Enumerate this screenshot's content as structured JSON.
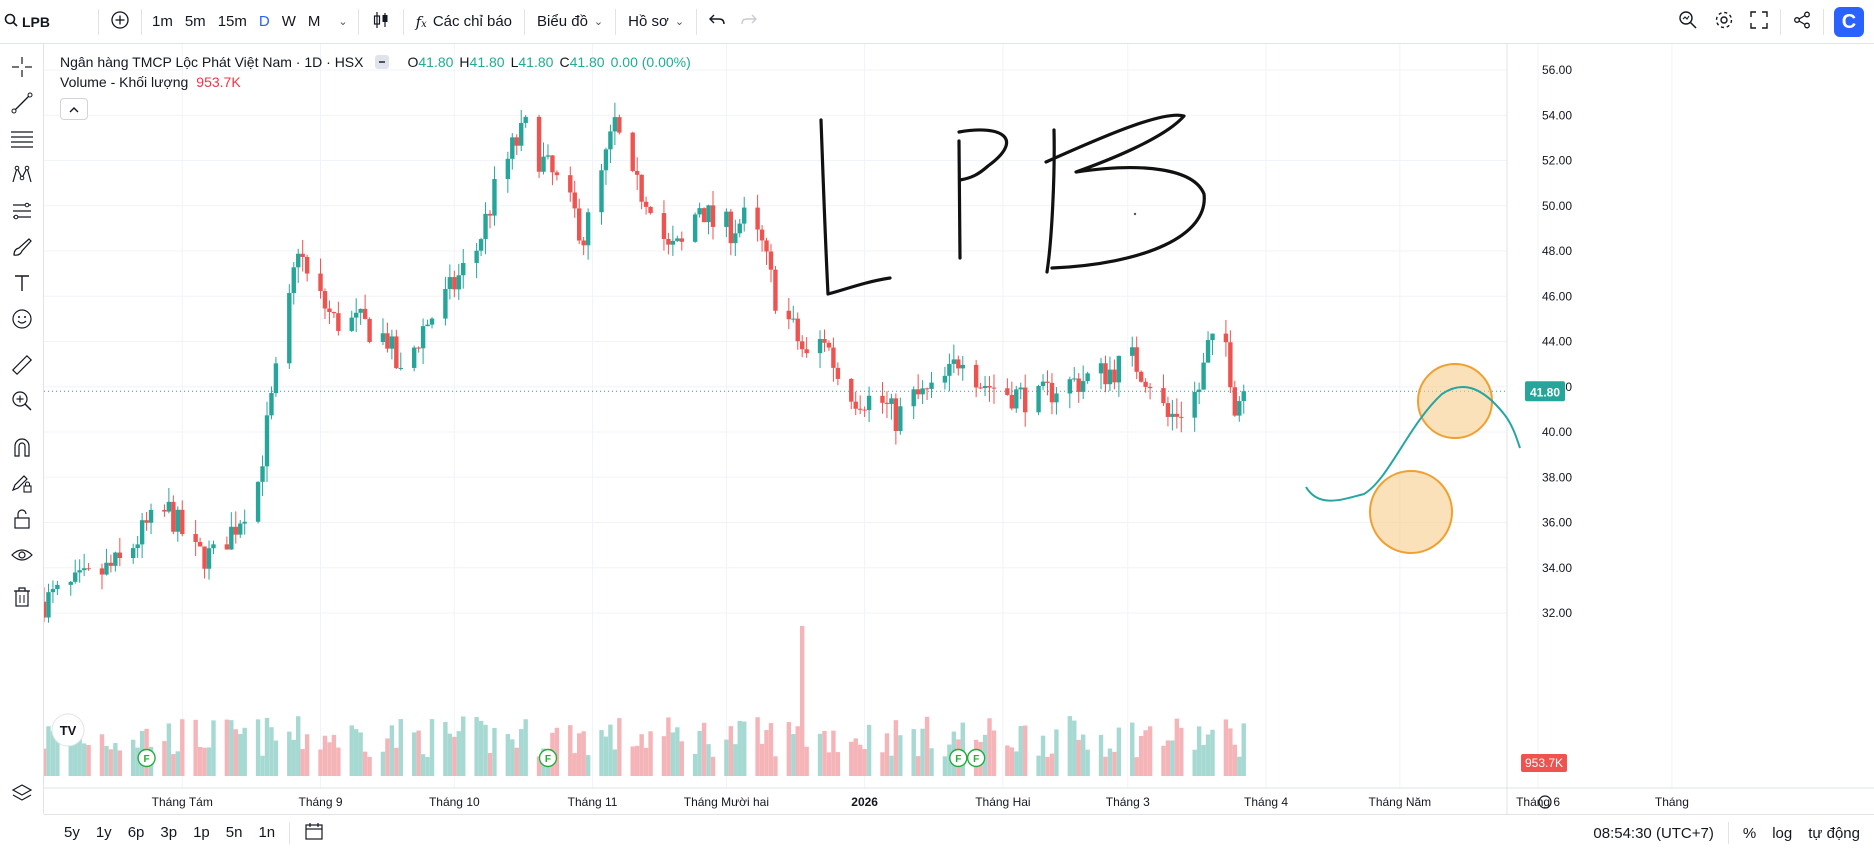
{
  "toolbar": {
    "symbol": "LPB",
    "intervals": [
      "1m",
      "5m",
      "15m",
      "D",
      "W",
      "M"
    ],
    "active_interval": "D",
    "indicators_label": "Các chỉ báo",
    "chart_type_label": "Biểu đồ",
    "profile_label": "Hồ sơ",
    "logo_letter": "C"
  },
  "legend": {
    "title": "Ngân hàng TMCP Lộc Phát Việt Nam · 1D · HSX",
    "o_label": "O",
    "o_value": "41.80",
    "h_label": "H",
    "h_value": "41.80",
    "l_label": "L",
    "l_value": "41.80",
    "c_label": "C",
    "c_value": "41.80",
    "change": "0.00 (0.00%)",
    "volume_label": "Volume - Khối lượng",
    "volume_value": "953.7K"
  },
  "annotations": {
    "handwritten_text": "LPB"
  },
  "bottombar": {
    "ranges": [
      "5y",
      "1y",
      "6p",
      "3p",
      "1p",
      "5n",
      "1n"
    ],
    "time": "08:54:30 (UTC+7)",
    "percent_label": "%",
    "log_label": "log",
    "auto_label": "tự động"
  },
  "colors": {
    "up": "#26a69a",
    "down": "#ef5350",
    "vol_up": "#a7d9d3",
    "vol_down": "#f5b5b8",
    "accent": "#2962ff",
    "marker_fill": "#f6c97f",
    "marker_stroke": "#f0a030"
  },
  "chart_data": {
    "type": "candlestick",
    "symbol": "LPB",
    "interval": "1D",
    "exchange": "HSX",
    "last_price": "41.80",
    "last_price_value": 41.8,
    "last_volume": "953.7K",
    "y_ticks": [
      "56.00",
      "54.00",
      "52.00",
      "50.00",
      "48.00",
      "46.00",
      "44.00",
      "42.00",
      "40.00",
      "38.00",
      "36.00",
      "34.00",
      "32.00"
    ],
    "ylim": [
      30.5,
      57.2
    ],
    "x_labels": [
      "Tháng Tám",
      "Tháng 9",
      "Tháng 10",
      "Tháng 11",
      "Tháng Mười hai",
      "2026",
      "Tháng Hai",
      "Tháng 3",
      "Tháng 4",
      "Tháng Năm",
      "Tháng 6",
      "Tháng"
    ],
    "x_label_dates": [
      "2025-08-01",
      "2025-09-01",
      "2025-10-01",
      "2025-11-01",
      "2025-12-01",
      "2026-01-01",
      "2026-02-01",
      "2026-03-01",
      "2026-04-01",
      "2026-05-01",
      "2026-06-01",
      "2026-07-01"
    ],
    "event_markers": [
      {
        "label": "F",
        "date": "2025-07-24"
      },
      {
        "label": "F",
        "date": "2025-10-22"
      },
      {
        "label": "F",
        "date": "2026-01-22"
      },
      {
        "label": "F",
        "date": "2026-01-26"
      }
    ],
    "close_series": [
      {
        "date": "2025-07-01",
        "close": 32.5
      },
      {
        "date": "2025-07-10",
        "close": 33.4
      },
      {
        "date": "2025-07-18",
        "close": 34.2
      },
      {
        "date": "2025-07-24",
        "close": 35.8
      },
      {
        "date": "2025-07-29",
        "close": 36.5
      },
      {
        "date": "2025-08-04",
        "close": 34.6
      },
      {
        "date": "2025-08-08",
        "close": 34.5
      },
      {
        "date": "2025-08-13",
        "close": 35.9
      },
      {
        "date": "2025-08-18",
        "close": 37.8
      },
      {
        "date": "2025-08-20",
        "close": 40.2
      },
      {
        "date": "2025-08-22",
        "close": 42.5
      },
      {
        "date": "2025-08-25",
        "close": 45.6
      },
      {
        "date": "2025-08-27",
        "close": 48.3
      },
      {
        "date": "2025-08-29",
        "close": 46.8
      },
      {
        "date": "2025-09-04",
        "close": 44.9
      },
      {
        "date": "2025-09-10",
        "close": 44.8
      },
      {
        "date": "2025-09-16",
        "close": 44.1
      },
      {
        "date": "2025-09-19",
        "close": 42.4
      },
      {
        "date": "2025-09-24",
        "close": 44.6
      },
      {
        "date": "2025-09-30",
        "close": 46.2
      },
      {
        "date": "2025-10-06",
        "close": 48.1
      },
      {
        "date": "2025-10-10",
        "close": 50.6
      },
      {
        "date": "2025-10-14",
        "close": 52.5
      },
      {
        "date": "2025-10-17",
        "close": 53.4
      },
      {
        "date": "2025-10-20",
        "close": 52.2
      },
      {
        "date": "2025-10-24",
        "close": 51.0
      },
      {
        "date": "2025-10-28",
        "close": 49.6
      },
      {
        "date": "2025-10-30",
        "close": 48.6
      },
      {
        "date": "2025-11-03",
        "close": 51.3
      },
      {
        "date": "2025-11-06",
        "close": 53.6
      },
      {
        "date": "2025-11-10",
        "close": 50.9
      },
      {
        "date": "2025-11-14",
        "close": 50.3
      },
      {
        "date": "2025-11-18",
        "close": 48.0
      },
      {
        "date": "2025-11-21",
        "close": 48.2
      },
      {
        "date": "2025-11-25",
        "close": 50.1
      },
      {
        "date": "2025-11-28",
        "close": 49.2
      },
      {
        "date": "2025-12-02",
        "close": 49.0
      },
      {
        "date": "2025-12-05",
        "close": 49.4
      },
      {
        "date": "2025-12-09",
        "close": 48.2
      },
      {
        "date": "2025-12-12",
        "close": 46.0
      },
      {
        "date": "2025-12-16",
        "close": 44.5
      },
      {
        "date": "2025-12-19",
        "close": 43.2
      },
      {
        "date": "2025-12-23",
        "close": 44.2
      },
      {
        "date": "2025-12-26",
        "close": 42.5
      },
      {
        "date": "2025-12-30",
        "close": 41.6
      },
      {
        "date": "2026-01-05",
        "close": 41.3
      },
      {
        "date": "2026-01-08",
        "close": 40.6
      },
      {
        "date": "2026-01-12",
        "close": 41.5
      },
      {
        "date": "2026-01-16",
        "close": 41.7
      },
      {
        "date": "2026-01-20",
        "close": 42.5
      },
      {
        "date": "2026-01-23",
        "close": 43.6
      },
      {
        "date": "2026-01-27",
        "close": 42.2
      },
      {
        "date": "2026-02-03",
        "close": 41.7
      },
      {
        "date": "2026-02-09",
        "close": 41.4
      },
      {
        "date": "2026-02-13",
        "close": 42.0
      },
      {
        "date": "2026-02-19",
        "close": 42.3
      },
      {
        "date": "2026-02-25",
        "close": 42.7
      },
      {
        "date": "2026-03-02",
        "close": 43.2
      },
      {
        "date": "2026-03-06",
        "close": 42.3
      },
      {
        "date": "2026-03-10",
        "close": 40.6
      },
      {
        "date": "2026-03-13",
        "close": 41.0
      },
      {
        "date": "2026-03-17",
        "close": 41.9
      },
      {
        "date": "2026-03-19",
        "close": 43.7
      },
      {
        "date": "2026-03-23",
        "close": 43.9
      },
      {
        "date": "2026-03-25",
        "close": 41.3
      },
      {
        "date": "2026-03-27",
        "close": 41.8
      }
    ]
  }
}
